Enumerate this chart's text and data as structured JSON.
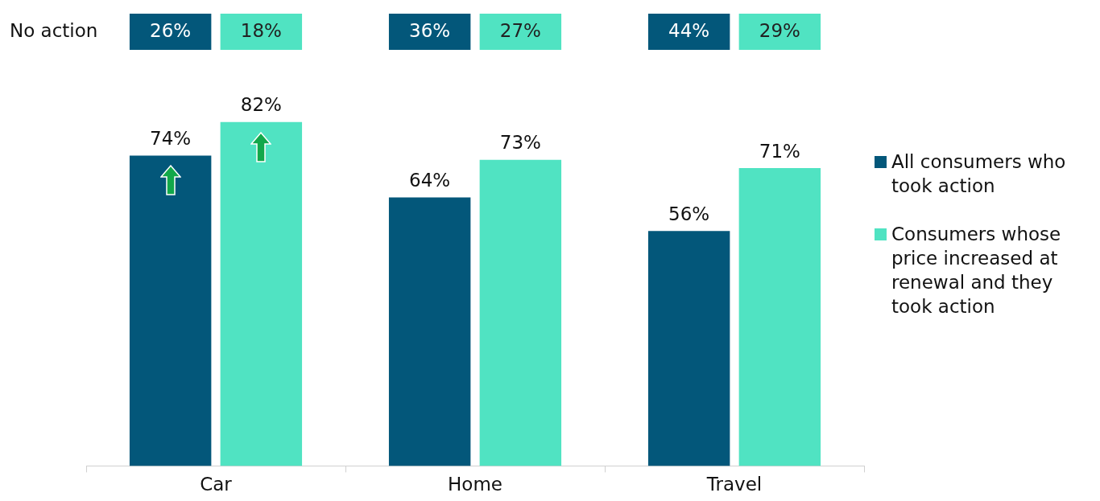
{
  "chart_data": {
    "type": "bar",
    "categories": [
      "Car",
      "Home",
      "Travel"
    ],
    "series": [
      {
        "name": "All consumers who took action",
        "color": "#03577a",
        "values": [
          74,
          64,
          56
        ],
        "value_labels": [
          "74%",
          "64%",
          "56%"
        ]
      },
      {
        "name": "Consumers whose price increased at renewal and they took action",
        "color": "#50e3c2",
        "values": [
          82,
          73,
          71
        ],
        "value_labels": [
          "82%",
          "73%",
          "71%"
        ]
      }
    ],
    "tick_labels": "x",
    "grid": false,
    "legend": "right",
    "annotations": [
      "No action",
      "26%",
      "18%",
      "36%",
      "27%",
      "44%",
      "29%"
    ]
  }
}
